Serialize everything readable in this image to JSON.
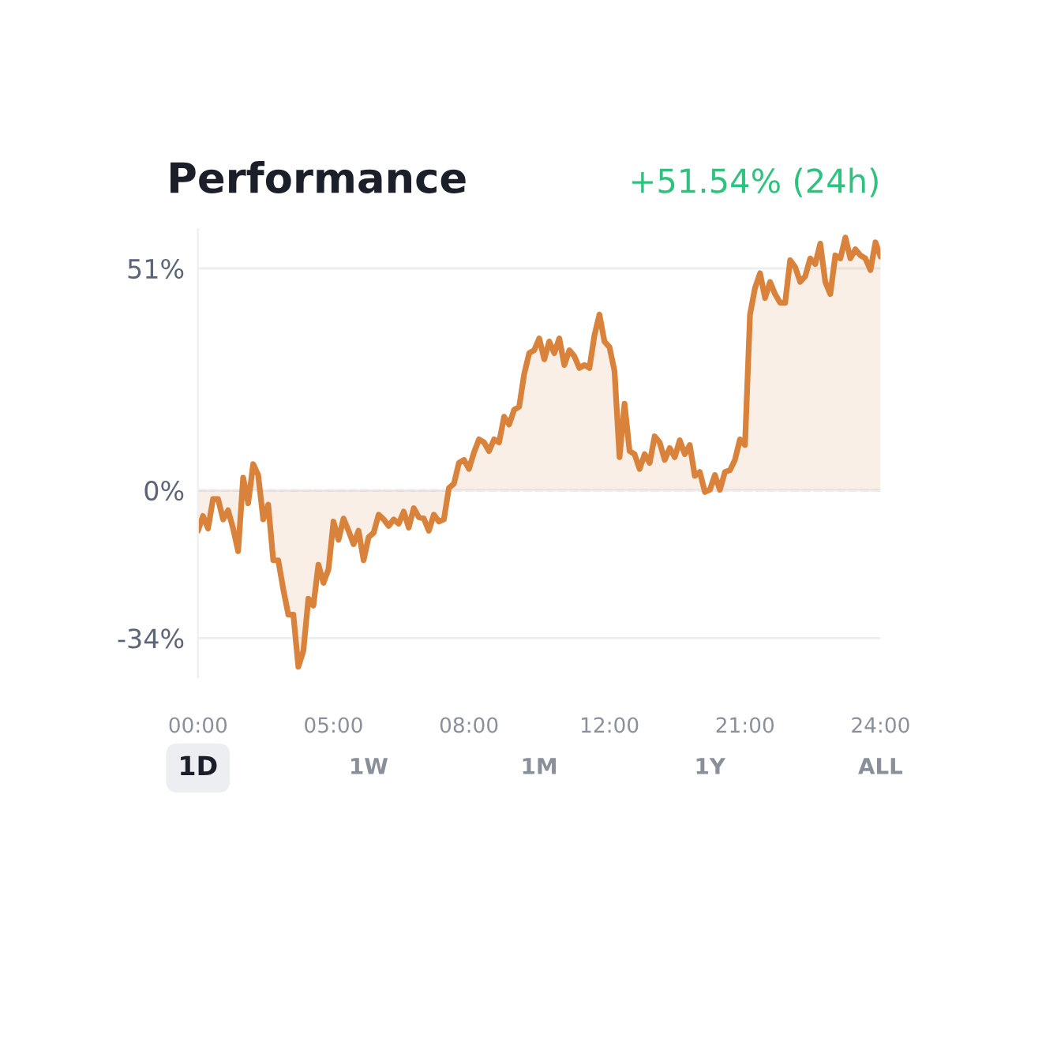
{
  "chart_data": {
    "type": "area",
    "title": "Performance",
    "subtitle": "+51.54% (24h)",
    "categories": [
      "00:00",
      null,
      null,
      null,
      null,
      null,
      null,
      null,
      null,
      null,
      null,
      null,
      null,
      null,
      null,
      null,
      null,
      null,
      null,
      null,
      null,
      null,
      null,
      null,
      null,
      null,
      null,
      "05:00",
      null,
      null,
      null,
      null,
      null,
      null,
      null,
      null,
      null,
      null,
      null,
      null,
      null,
      null,
      null,
      null,
      null,
      null,
      null,
      null,
      null,
      null,
      null,
      null,
      null,
      null,
      "08:00",
      null,
      null,
      null,
      null,
      null,
      null,
      null,
      null,
      null,
      null,
      null,
      null,
      null,
      null,
      null,
      null,
      null,
      null,
      null,
      null,
      null,
      null,
      null,
      null,
      null,
      null,
      null,
      "12:00",
      null,
      null,
      null,
      null,
      null,
      null,
      null,
      null,
      null,
      null,
      null,
      null,
      null,
      null,
      null,
      null,
      null,
      null,
      null,
      null,
      null,
      null,
      null,
      null,
      null,
      null,
      "21:00",
      null,
      null,
      null,
      null,
      null,
      null,
      null,
      null,
      null,
      null,
      null,
      null,
      null,
      null,
      null,
      null,
      null,
      null,
      null,
      null,
      null,
      null,
      null,
      null,
      null,
      null,
      "24:00"
    ],
    "series": [
      {
        "color": "#d9823b",
        "values": [
          -9.3,
          -5.9,
          -8.8,
          -2.0,
          -2.0,
          -6.7,
          -4.6,
          -8.8,
          -14.0,
          2.9,
          -3.0,
          6.0,
          3.5,
          -6.7,
          -3.3,
          -16.1,
          -16.1,
          -22.8,
          -28.6,
          -28.6,
          -40.6,
          -36.9,
          -24.9,
          -26.5,
          -17.1,
          -21.3,
          -18.2,
          -7.2,
          -11.4,
          -6.5,
          -9.3,
          -12.4,
          -9.3,
          -16.1,
          -10.8,
          -9.8,
          -5.6,
          -6.7,
          -8.2,
          -6.7,
          -7.7,
          -4.9,
          -8.6,
          -4.1,
          -6.2,
          -6.5,
          -9.3,
          -5.6,
          -7.2,
          -6.7,
          0.5,
          1.5,
          6.3,
          7.0,
          4.9,
          8.7,
          11.7,
          11.0,
          9.0,
          11.7,
          11.0,
          16.9,
          15.1,
          18.5,
          19.2,
          26.7,
          31.5,
          32.2,
          34.9,
          30.1,
          34.2,
          31.5,
          34.9,
          28.8,
          32.2,
          30.8,
          28.1,
          28.8,
          28.1,
          35.6,
          40.4,
          34.2,
          32.9,
          27.4,
          7.6,
          19.9,
          9.0,
          8.3,
          4.9,
          8.3,
          6.3,
          12.4,
          11.0,
          7.0,
          9.7,
          7.6,
          11.5,
          8.3,
          10.4,
          3.3,
          4.2,
          -0.4,
          0.1,
          3.5,
          0.1,
          4.2,
          4.6,
          7.0,
          11.7,
          10.4,
          40.4,
          46.5,
          49.9,
          44.2,
          47.9,
          45.1,
          43.1,
          43.1,
          52.9,
          51.3,
          47.9,
          49.2,
          53.3,
          52.0,
          56.7,
          47.9,
          45.1,
          54.0,
          53.3,
          58.1,
          53.3,
          55.4,
          54.0,
          53.3,
          50.6,
          57.0,
          53.7
        ]
      }
    ],
    "ylim": [
      -43,
      60
    ],
    "yticks": [
      {
        "value": 51,
        "label": "51%"
      },
      {
        "value": 0,
        "label": "0%"
      },
      {
        "value": -34,
        "label": "-34%"
      }
    ],
    "grid": "y",
    "ref_lines": [
      {
        "axis": "y",
        "value": 0,
        "line_style": "dashed",
        "color": "#c8ccd2"
      }
    ],
    "annotations": [
      "1D",
      "1W",
      "1M",
      "1Y",
      "ALL"
    ]
  }
}
